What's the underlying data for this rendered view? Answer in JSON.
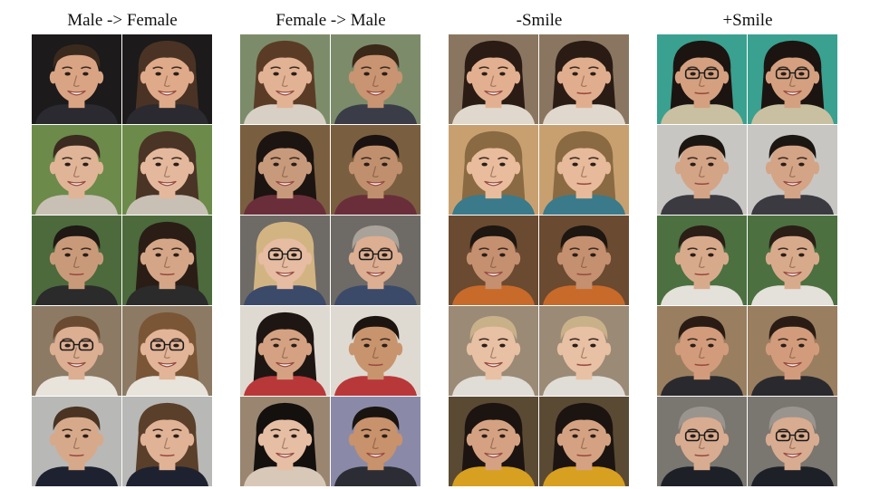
{
  "panels": [
    {
      "title": "Male -> Female",
      "rows": [
        [
          {
            "bg": "#1c1a1a",
            "skin": "#d9a484",
            "hair": "#3a2a1e",
            "long": false,
            "glasses": false,
            "smile": true,
            "shirt": "#2a2a30"
          },
          {
            "bg": "#1c1a1a",
            "skin": "#dfaa8a",
            "hair": "#4a3324",
            "long": true,
            "glasses": false,
            "smile": true,
            "shirt": "#2a2a30"
          }
        ],
        [
          {
            "bg": "#6c8a4a",
            "skin": "#e0b497",
            "hair": "#3b2a20",
            "long": false,
            "glasses": false,
            "smile": true,
            "shirt": "#c8c0b4"
          },
          {
            "bg": "#6c8a4a",
            "skin": "#e4b89c",
            "hair": "#4a3426",
            "long": true,
            "glasses": false,
            "smile": true,
            "shirt": "#c8c0b4"
          }
        ],
        [
          {
            "bg": "#4c6a3c",
            "skin": "#c99a7a",
            "hair": "#1f1814",
            "long": false,
            "glasses": false,
            "smile": false,
            "shirt": "#2b2b2b"
          },
          {
            "bg": "#4c6a3c",
            "skin": "#d4a687",
            "hair": "#2a1d16",
            "long": true,
            "glasses": false,
            "smile": false,
            "shirt": "#2b2b2b"
          }
        ],
        [
          {
            "bg": "#8c7a64",
            "skin": "#dcae92",
            "hair": "#6a4a30",
            "long": false,
            "glasses": true,
            "smile": true,
            "shirt": "#e8e4dc"
          },
          {
            "bg": "#8c7a64",
            "skin": "#e2b498",
            "hair": "#7a5636",
            "long": true,
            "glasses": true,
            "smile": true,
            "shirt": "#e8e4dc"
          }
        ],
        [
          {
            "bg": "#b8b8b6",
            "skin": "#d7a98b",
            "hair": "#4a3322",
            "long": false,
            "glasses": false,
            "smile": false,
            "shirt": "#1e2230"
          },
          {
            "bg": "#b8b8b6",
            "skin": "#e0b396",
            "hair": "#5a3f2a",
            "long": true,
            "glasses": false,
            "smile": false,
            "shirt": "#1e2230"
          }
        ]
      ]
    },
    {
      "title": "Female -> Male",
      "rows": [
        [
          {
            "bg": "#7c8c6a",
            "skin": "#e2b294",
            "hair": "#5a3c26",
            "long": true,
            "glasses": false,
            "smile": true,
            "shirt": "#d8d0c4"
          },
          {
            "bg": "#7c8c6a",
            "skin": "#c99472",
            "hair": "#3a2818",
            "long": false,
            "glasses": false,
            "smile": true,
            "shirt": "#3a3c48"
          }
        ],
        [
          {
            "bg": "#7a5e40",
            "skin": "#c89a7c",
            "hair": "#1c1410",
            "long": true,
            "glasses": false,
            "smile": true,
            "shirt": "#6a2e3a"
          },
          {
            "bg": "#7a5e40",
            "skin": "#c0906e",
            "hair": "#1a1210",
            "long": false,
            "glasses": false,
            "smile": true,
            "shirt": "#6a2e3a"
          }
        ],
        [
          {
            "bg": "#6e6a66",
            "skin": "#e6bca2",
            "hair": "#d2b482",
            "long": true,
            "glasses": true,
            "smile": true,
            "shirt": "#3c4a6a"
          },
          {
            "bg": "#6e6a66",
            "skin": "#dcae92",
            "hair": "#a8a29a",
            "long": false,
            "glasses": true,
            "smile": true,
            "shirt": "#3c4a6a"
          }
        ],
        [
          {
            "bg": "#dedad2",
            "skin": "#d4a282",
            "hair": "#1e1612",
            "long": true,
            "glasses": false,
            "smile": true,
            "shirt": "#b8383a"
          },
          {
            "bg": "#dedad2",
            "skin": "#c8946e",
            "hair": "#1c1410",
            "long": false,
            "glasses": false,
            "smile": false,
            "shirt": "#b8383a"
          }
        ],
        [
          {
            "bg": "#9a8670",
            "skin": "#e6bea4",
            "hair": "#14100e",
            "long": true,
            "glasses": false,
            "smile": true,
            "shirt": "#d8c8b8"
          },
          {
            "bg": "#8a8aa8",
            "skin": "#c8926c",
            "hair": "#1a1410",
            "long": false,
            "glasses": false,
            "smile": true,
            "shirt": "#2c2c34"
          }
        ]
      ]
    },
    {
      "title": "-Smile",
      "rows": [
        [
          {
            "bg": "#8a7660",
            "skin": "#e2b090",
            "hair": "#2a1c14",
            "long": true,
            "glasses": false,
            "smile": true,
            "shirt": "#e0d8cc"
          },
          {
            "bg": "#8a7660",
            "skin": "#e0ae8e",
            "hair": "#2a1c14",
            "long": true,
            "glasses": false,
            "smile": false,
            "shirt": "#e0d8cc"
          }
        ],
        [
          {
            "bg": "#c8a070",
            "skin": "#e8bc9c",
            "hair": "#8a6a42",
            "long": true,
            "glasses": false,
            "smile": true,
            "shirt": "#3a7a8a"
          },
          {
            "bg": "#c8a070",
            "skin": "#e6ba9a",
            "hair": "#8a6a42",
            "long": true,
            "glasses": false,
            "smile": false,
            "shirt": "#3a7a8a"
          }
        ],
        [
          {
            "bg": "#6a4a30",
            "skin": "#c49070",
            "hair": "#1e1610",
            "long": false,
            "glasses": false,
            "smile": true,
            "shirt": "#c86a2a"
          },
          {
            "bg": "#6a4a30",
            "skin": "#c49070",
            "hair": "#1e1610",
            "long": false,
            "glasses": false,
            "smile": false,
            "shirt": "#c86a2a"
          }
        ],
        [
          {
            "bg": "#9a8a76",
            "skin": "#e8c0a4",
            "hair": "#c8b088",
            "long": false,
            "glasses": false,
            "smile": true,
            "shirt": "#e0dcd6"
          },
          {
            "bg": "#9a8a76",
            "skin": "#e8c0a4",
            "hair": "#c8b088",
            "long": false,
            "glasses": false,
            "smile": false,
            "shirt": "#e0dcd6"
          }
        ],
        [
          {
            "bg": "#5a4a34",
            "skin": "#d4a282",
            "hair": "#1c1410",
            "long": true,
            "glasses": false,
            "smile": true,
            "shirt": "#d8a020"
          },
          {
            "bg": "#5a4a34",
            "skin": "#d4a282",
            "hair": "#1c1410",
            "long": true,
            "glasses": false,
            "smile": false,
            "shirt": "#d8a020"
          }
        ]
      ]
    },
    {
      "title": "+Smile",
      "rows": [
        [
          {
            "bg": "#3aa090",
            "skin": "#d4a080",
            "hair": "#1c1410",
            "long": true,
            "glasses": true,
            "smile": false,
            "shirt": "#c8c0a0"
          },
          {
            "bg": "#3aa090",
            "skin": "#d4a080",
            "hair": "#1c1410",
            "long": true,
            "glasses": true,
            "smile": true,
            "shirt": "#c8c0a0"
          }
        ],
        [
          {
            "bg": "#c8c6c2",
            "skin": "#d4a486",
            "hair": "#1c1612",
            "long": false,
            "glasses": false,
            "smile": false,
            "shirt": "#3a3a40"
          },
          {
            "bg": "#c8c6c2",
            "skin": "#d4a486",
            "hair": "#1c1612",
            "long": false,
            "glasses": false,
            "smile": true,
            "shirt": "#3a3a40"
          }
        ],
        [
          {
            "bg": "#4c7040",
            "skin": "#d8aa8c",
            "hair": "#2a1e16",
            "long": false,
            "glasses": false,
            "smile": false,
            "shirt": "#e4e0da"
          },
          {
            "bg": "#4c7040",
            "skin": "#d8aa8c",
            "hair": "#2a1e16",
            "long": false,
            "glasses": false,
            "smile": true,
            "shirt": "#e4e0da"
          }
        ],
        [
          {
            "bg": "#9a7e60",
            "skin": "#d29c7c",
            "hair": "#2a1c14",
            "long": false,
            "glasses": false,
            "smile": false,
            "shirt": "#2a2a2e"
          },
          {
            "bg": "#9a7e60",
            "skin": "#d29c7c",
            "hair": "#2a1c14",
            "long": false,
            "glasses": false,
            "smile": true,
            "shirt": "#2a2a2e"
          }
        ],
        [
          {
            "bg": "#7a7670",
            "skin": "#d8ac90",
            "hair": "#9a948e",
            "long": false,
            "glasses": true,
            "smile": false,
            "shirt": "#1e2028"
          },
          {
            "bg": "#7a7670",
            "skin": "#d8ac90",
            "hair": "#9a948e",
            "long": false,
            "glasses": true,
            "smile": true,
            "shirt": "#1e2028"
          }
        ]
      ]
    }
  ]
}
